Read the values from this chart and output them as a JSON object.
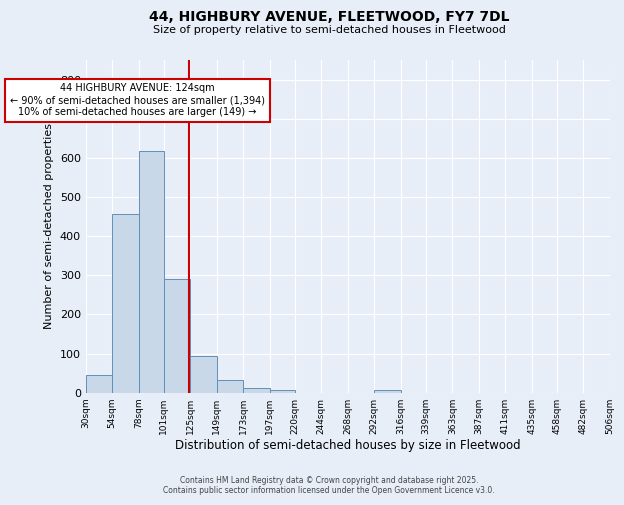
{
  "title_line1": "44, HIGHBURY AVENUE, FLEETWOOD, FY7 7DL",
  "title_line2": "Size of property relative to semi-detached houses in Fleetwood",
  "xlabel": "Distribution of semi-detached houses by size in Fleetwood",
  "ylabel": "Number of semi-detached properties",
  "bin_edges": [
    30,
    54,
    78,
    101,
    125,
    149,
    173,
    197,
    220,
    244,
    268,
    292,
    316,
    339,
    363,
    387,
    411,
    435,
    458,
    482,
    506
  ],
  "bar_heights": [
    44,
    457,
    617,
    290,
    95,
    33,
    13,
    7,
    0,
    0,
    0,
    7,
    0,
    0,
    0,
    0,
    0,
    0,
    0,
    0
  ],
  "bar_color": "#c8d8e8",
  "bar_edge_color": "#6090b8",
  "property_size": 124,
  "vline_color": "#cc0000",
  "annotation_text_line1": "44 HIGHBURY AVENUE: 124sqm",
  "annotation_text_line2": "← 90% of semi-detached houses are smaller (1,394)",
  "annotation_text_line3": "10% of semi-detached houses are larger (149) →",
  "annotation_box_color": "#ffffff",
  "annotation_box_edge": "#cc0000",
  "ylim": [
    0,
    850
  ],
  "yticks": [
    0,
    100,
    200,
    300,
    400,
    500,
    600,
    700,
    800
  ],
  "background_color": "#e8eef8",
  "grid_color": "#ffffff",
  "footer_line1": "Contains HM Land Registry data © Crown copyright and database right 2025.",
  "footer_line2": "Contains public sector information licensed under the Open Government Licence v3.0."
}
